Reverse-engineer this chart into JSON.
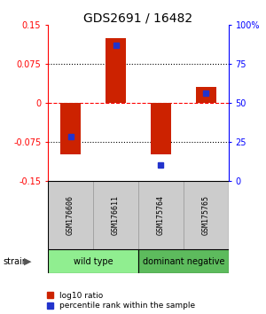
{
  "title": "GDS2691 / 16482",
  "samples": [
    "GSM176606",
    "GSM176611",
    "GSM175764",
    "GSM175765"
  ],
  "log10_ratio": [
    -0.1,
    0.125,
    -0.1,
    0.03
  ],
  "percentile_rank": [
    28,
    87,
    10,
    56
  ],
  "groups": [
    {
      "label": "wild type",
      "samples": [
        0,
        1
      ],
      "color": "#90ee90"
    },
    {
      "label": "dominant negative",
      "samples": [
        2,
        3
      ],
      "color": "#5dbb5d"
    }
  ],
  "ylim_left": [
    -0.15,
    0.15
  ],
  "ylim_right": [
    0,
    100
  ],
  "yticks_left": [
    -0.15,
    -0.075,
    0,
    0.075,
    0.15
  ],
  "yticks_right": [
    0,
    25,
    50,
    75,
    100
  ],
  "ytick_labels_right": [
    "0",
    "25",
    "50",
    "75",
    "100%"
  ],
  "hlines_dotted": [
    0.075,
    -0.075
  ],
  "bar_color_red": "#cc2200",
  "bar_color_blue": "#2233cc",
  "bar_width": 0.45,
  "title_fontsize": 10,
  "tick_fontsize": 7,
  "sample_fontsize": 6,
  "group_fontsize": 7,
  "legend_fontsize": 6.5,
  "gray_cell_color": "#cccccc",
  "gray_cell_border": "#999999"
}
